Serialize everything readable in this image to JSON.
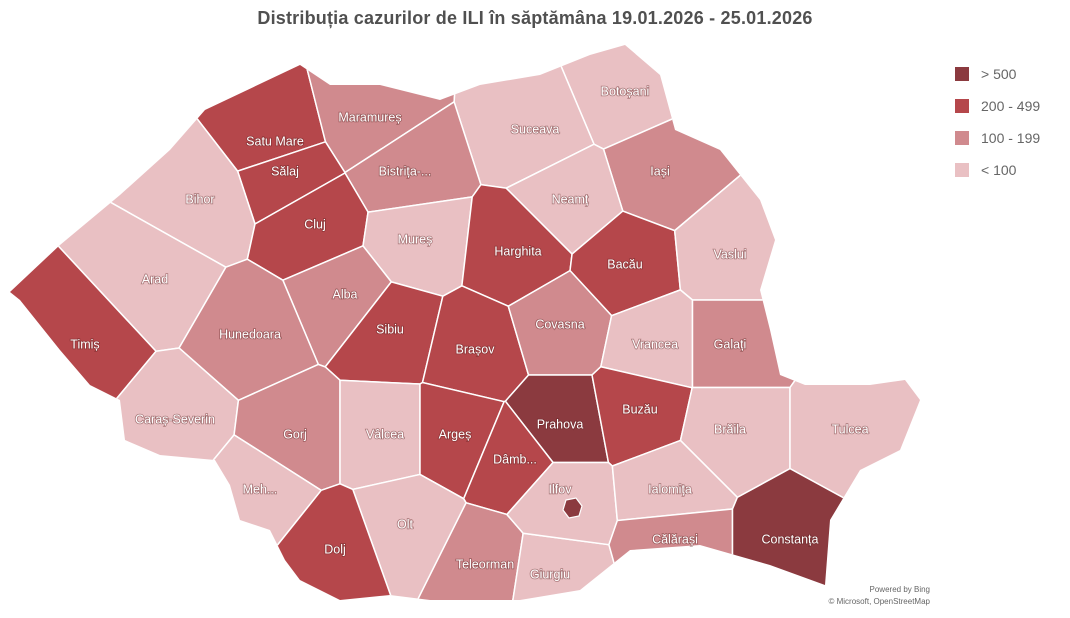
{
  "title": "Distribuția cazurilor de ILI în săptămâna 19.01.2026 - 25.01.2026",
  "colors": {
    "gt500": "#8b3a3f",
    "200-499": "#b5474b",
    "100-199": "#d08a8e",
    "lt100": "#e9c0c3"
  },
  "legend": [
    {
      "key": "gt500",
      "label": "> 500"
    },
    {
      "key": "200-499",
      "label": "200 - 499"
    },
    {
      "key": "100-199",
      "label": "100 - 199"
    },
    {
      "key": "lt100",
      "label": "< 100"
    }
  ],
  "counties": [
    {
      "name": "Satu Mare",
      "cat": "200-499"
    },
    {
      "name": "Maramureș",
      "cat": "100-199"
    },
    {
      "name": "Botoșani",
      "cat": "lt100"
    },
    {
      "name": "Suceava",
      "cat": "lt100"
    },
    {
      "name": "Sălaj",
      "cat": "200-499"
    },
    {
      "name": "Bistrița-...",
      "cat": "100-199"
    },
    {
      "name": "Iași",
      "cat": "100-199"
    },
    {
      "name": "Bihor",
      "cat": "lt100"
    },
    {
      "name": "Cluj",
      "cat": "200-499"
    },
    {
      "name": "Neamț",
      "cat": "lt100"
    },
    {
      "name": "Mureș",
      "cat": "lt100"
    },
    {
      "name": "Harghita",
      "cat": "200-499"
    },
    {
      "name": "Bacău",
      "cat": "200-499"
    },
    {
      "name": "Vaslui",
      "cat": "lt100"
    },
    {
      "name": "Arad",
      "cat": "lt100"
    },
    {
      "name": "Alba",
      "cat": "100-199"
    },
    {
      "name": "Timiș",
      "cat": "200-499"
    },
    {
      "name": "Sibiu",
      "cat": "200-499"
    },
    {
      "name": "Brașov",
      "cat": "200-499"
    },
    {
      "name": "Covasna",
      "cat": "100-199"
    },
    {
      "name": "Vrancea",
      "cat": "lt100"
    },
    {
      "name": "Galați",
      "cat": "100-199"
    },
    {
      "name": "Hunedoara",
      "cat": "100-199"
    },
    {
      "name": "Caraș-Severin",
      "cat": "lt100"
    },
    {
      "name": "Gorj",
      "cat": "100-199"
    },
    {
      "name": "Vâlcea",
      "cat": "lt100"
    },
    {
      "name": "Argeș",
      "cat": "200-499"
    },
    {
      "name": "Prahova",
      "cat": "gt500"
    },
    {
      "name": "Dâmb...",
      "cat": "200-499"
    },
    {
      "name": "Buzău",
      "cat": "200-499"
    },
    {
      "name": "Brăila",
      "cat": "lt100"
    },
    {
      "name": "Tulcea",
      "cat": "lt100"
    },
    {
      "name": "Meh...",
      "cat": "lt100"
    },
    {
      "name": "Olt",
      "cat": "lt100"
    },
    {
      "name": "Dolj",
      "cat": "200-499"
    },
    {
      "name": "Teleorman",
      "cat": "100-199"
    },
    {
      "name": "Giurgiu",
      "cat": "lt100"
    },
    {
      "name": "Ilfov",
      "cat": "lt100"
    },
    {
      "name": "Ialomița",
      "cat": "lt100"
    },
    {
      "name": "Călărași",
      "cat": "100-199"
    },
    {
      "name": "Constanța",
      "cat": "gt500"
    }
  ],
  "bucharest": {
    "cat": "gt500"
  },
  "attribution": {
    "line1": "Powered by Bing",
    "line2": "© Microsoft, OpenStreetMap"
  }
}
